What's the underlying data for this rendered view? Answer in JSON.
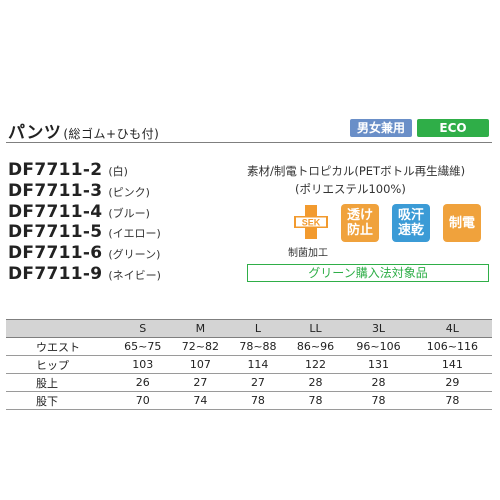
{
  "product": {
    "title": "パンツ",
    "subtitle": "(総ゴム+ひも付)",
    "badges": {
      "gender": "男女兼用",
      "eco": "ECO"
    }
  },
  "models": [
    {
      "code": "DF7711-2",
      "color": "(白)"
    },
    {
      "code": "DF7711-3",
      "color": "(ピンク)"
    },
    {
      "code": "DF7711-4",
      "color": "(ブルー)"
    },
    {
      "code": "DF7711-5",
      "color": "(イエロー)"
    },
    {
      "code": "DF7711-6",
      "color": "(グリーン)"
    },
    {
      "code": "DF7711-9",
      "color": "(ネイビー)"
    }
  ],
  "material": {
    "line1": "素材/制電トロピカル(PETボトル再生繊維)",
    "line2": "(ポリエステル100%)"
  },
  "features": {
    "sek": {
      "mark": "SEK",
      "label": "制菌加工"
    },
    "items": [
      {
        "label": "透け防止",
        "color": "#f0a23c"
      },
      {
        "label": "吸汗速乾",
        "color": "#3b9bd6"
      },
      {
        "label": "制電",
        "color": "#f0a23c"
      }
    ]
  },
  "green_purchase": "グリーン購入法対象品",
  "size_table": {
    "headers": [
      "",
      "S",
      "M",
      "L",
      "LL",
      "3L",
      "4L"
    ],
    "rows": [
      {
        "label": "ウエスト",
        "values": [
          "65~75",
          "72~82",
          "78~88",
          "86~96",
          "96~106",
          "106~116"
        ]
      },
      {
        "label": "ヒップ",
        "values": [
          "103",
          "107",
          "114",
          "122",
          "131",
          "141"
        ]
      },
      {
        "label": "股上",
        "values": [
          "26",
          "27",
          "27",
          "28",
          "28",
          "29"
        ]
      },
      {
        "label": "股下",
        "values": [
          "70",
          "74",
          "78",
          "78",
          "78",
          "78"
        ]
      }
    ]
  }
}
